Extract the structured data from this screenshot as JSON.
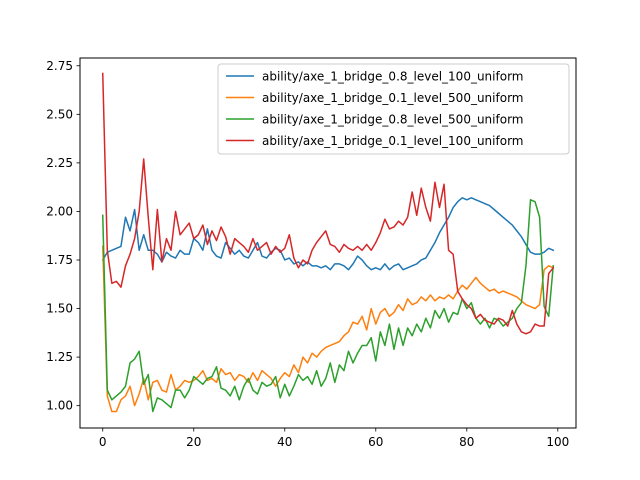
{
  "chart_data": {
    "type": "line",
    "title": "",
    "xlabel": "",
    "ylabel": "",
    "xlim": [
      -5,
      104
    ],
    "ylim": [
      0.885,
      2.79
    ],
    "xticks": [
      0,
      20,
      40,
      60,
      80,
      100
    ],
    "yticks": [
      1.0,
      1.25,
      1.5,
      1.75,
      2.0,
      2.25,
      2.5,
      2.75
    ],
    "ytick_format": 2,
    "grid": false,
    "legend_position": "top-right",
    "series": [
      {
        "name": "ability/axe_1_bridge_0.8_level_100_uniform",
        "color": "#1f77b4",
        "x_start": 0,
        "values": [
          1.75,
          1.79,
          1.8,
          1.81,
          1.82,
          1.97,
          1.9,
          2.01,
          1.8,
          1.88,
          1.8,
          1.8,
          1.78,
          1.74,
          1.79,
          1.77,
          1.76,
          1.8,
          1.78,
          1.78,
          1.86,
          1.84,
          1.8,
          1.91,
          1.8,
          1.77,
          1.76,
          1.84,
          1.81,
          1.78,
          1.8,
          1.77,
          1.76,
          1.8,
          1.84,
          1.77,
          1.76,
          1.79,
          1.81,
          1.8,
          1.75,
          1.76,
          1.73,
          1.74,
          1.72,
          1.74,
          1.72,
          1.72,
          1.71,
          1.72,
          1.7,
          1.73,
          1.73,
          1.72,
          1.7,
          1.73,
          1.77,
          1.75,
          1.72,
          1.7,
          1.71,
          1.7,
          1.73,
          1.7,
          1.72,
          1.73,
          1.7,
          1.71,
          1.72,
          1.73,
          1.75,
          1.76,
          1.8,
          1.84,
          1.89,
          1.93,
          1.97,
          2.02,
          2.05,
          2.07,
          2.06,
          2.07,
          2.06,
          2.05,
          2.04,
          2.03,
          2.01,
          1.99,
          1.97,
          1.95,
          1.93,
          1.9,
          1.87,
          1.83,
          1.79,
          1.78,
          1.78,
          1.79,
          1.81,
          1.8
        ]
      },
      {
        "name": "ability/axe_1_bridge_0.1_level_500_uniform",
        "color": "#ff7f0e",
        "x_start": 0,
        "values": [
          1.82,
          1.05,
          0.97,
          0.97,
          1.03,
          1.05,
          1.1,
          1.0,
          1.06,
          1.14,
          1.03,
          1.12,
          1.13,
          1.08,
          1.07,
          1.16,
          1.08,
          1.1,
          1.13,
          1.12,
          1.13,
          1.15,
          1.18,
          1.13,
          1.14,
          1.12,
          1.19,
          1.16,
          1.17,
          1.13,
          1.16,
          1.15,
          1.12,
          1.17,
          1.13,
          1.18,
          1.16,
          1.14,
          1.1,
          1.14,
          1.17,
          1.15,
          1.21,
          1.17,
          1.25,
          1.22,
          1.27,
          1.25,
          1.28,
          1.3,
          1.31,
          1.32,
          1.33,
          1.36,
          1.38,
          1.43,
          1.42,
          1.46,
          1.39,
          1.5,
          1.42,
          1.48,
          1.5,
          1.46,
          1.48,
          1.52,
          1.49,
          1.55,
          1.52,
          1.53,
          1.56,
          1.54,
          1.57,
          1.54,
          1.56,
          1.55,
          1.57,
          1.55,
          1.59,
          1.62,
          1.6,
          1.63,
          1.66,
          1.63,
          1.61,
          1.59,
          1.6,
          1.58,
          1.59,
          1.58,
          1.57,
          1.56,
          1.54,
          1.52,
          1.51,
          1.5,
          1.52,
          1.7,
          1.72,
          1.71
        ]
      },
      {
        "name": "ability/axe_1_bridge_0.8_level_500_uniform",
        "color": "#2ca02c",
        "x_start": 0,
        "values": [
          1.98,
          1.08,
          1.03,
          1.05,
          1.07,
          1.1,
          1.22,
          1.24,
          1.28,
          1.11,
          1.16,
          0.97,
          1.04,
          1.03,
          1.01,
          0.99,
          1.08,
          1.08,
          1.04,
          1.08,
          1.15,
          1.13,
          1.11,
          1.14,
          1.15,
          1.2,
          1.09,
          1.08,
          1.05,
          1.1,
          1.03,
          1.1,
          1.14,
          1.08,
          1.06,
          1.12,
          1.1,
          1.11,
          1.15,
          1.04,
          1.11,
          1.05,
          1.1,
          1.16,
          1.13,
          1.15,
          1.11,
          1.18,
          1.1,
          1.14,
          1.22,
          1.12,
          1.21,
          1.18,
          1.28,
          1.22,
          1.27,
          1.31,
          1.31,
          1.35,
          1.23,
          1.38,
          1.31,
          1.42,
          1.29,
          1.4,
          1.31,
          1.4,
          1.36,
          1.42,
          1.38,
          1.45,
          1.4,
          1.49,
          1.45,
          1.5,
          1.43,
          1.48,
          1.47,
          1.55,
          1.5,
          1.53,
          1.45,
          1.42,
          1.45,
          1.4,
          1.45,
          1.44,
          1.41,
          1.43,
          1.45,
          1.5,
          1.53,
          1.72,
          2.06,
          2.05,
          1.97,
          1.51,
          1.46,
          1.72
        ]
      },
      {
        "name": "ability/axe_1_bridge_0.1_level_100_uniform",
        "color": "#d62728",
        "x_start": 0,
        "values": [
          2.71,
          1.8,
          1.63,
          1.64,
          1.61,
          1.72,
          1.78,
          1.86,
          2.0,
          2.27,
          1.97,
          1.7,
          2.01,
          1.74,
          1.86,
          1.8,
          2.0,
          1.88,
          1.91,
          1.94,
          1.86,
          1.88,
          1.93,
          1.83,
          1.9,
          1.85,
          1.92,
          1.87,
          1.78,
          1.86,
          1.84,
          1.82,
          1.79,
          1.86,
          1.8,
          1.82,
          1.84,
          1.78,
          1.82,
          1.79,
          1.81,
          1.88,
          1.76,
          1.71,
          1.75,
          1.73,
          1.8,
          1.84,
          1.87,
          1.9,
          1.83,
          1.82,
          1.79,
          1.83,
          1.81,
          1.8,
          1.82,
          1.8,
          1.83,
          1.8,
          1.84,
          1.89,
          1.96,
          1.91,
          1.92,
          1.95,
          1.93,
          1.97,
          2.1,
          1.98,
          2.12,
          2.02,
          1.95,
          2.15,
          2.02,
          2.14,
          1.8,
          1.78,
          1.59,
          1.55,
          1.52,
          1.5,
          1.45,
          1.47,
          1.44,
          1.43,
          1.42,
          1.45,
          1.44,
          1.41,
          1.49,
          1.42,
          1.38,
          1.37,
          1.38,
          1.42,
          1.41,
          1.41,
          1.68,
          1.71
        ]
      }
    ]
  }
}
